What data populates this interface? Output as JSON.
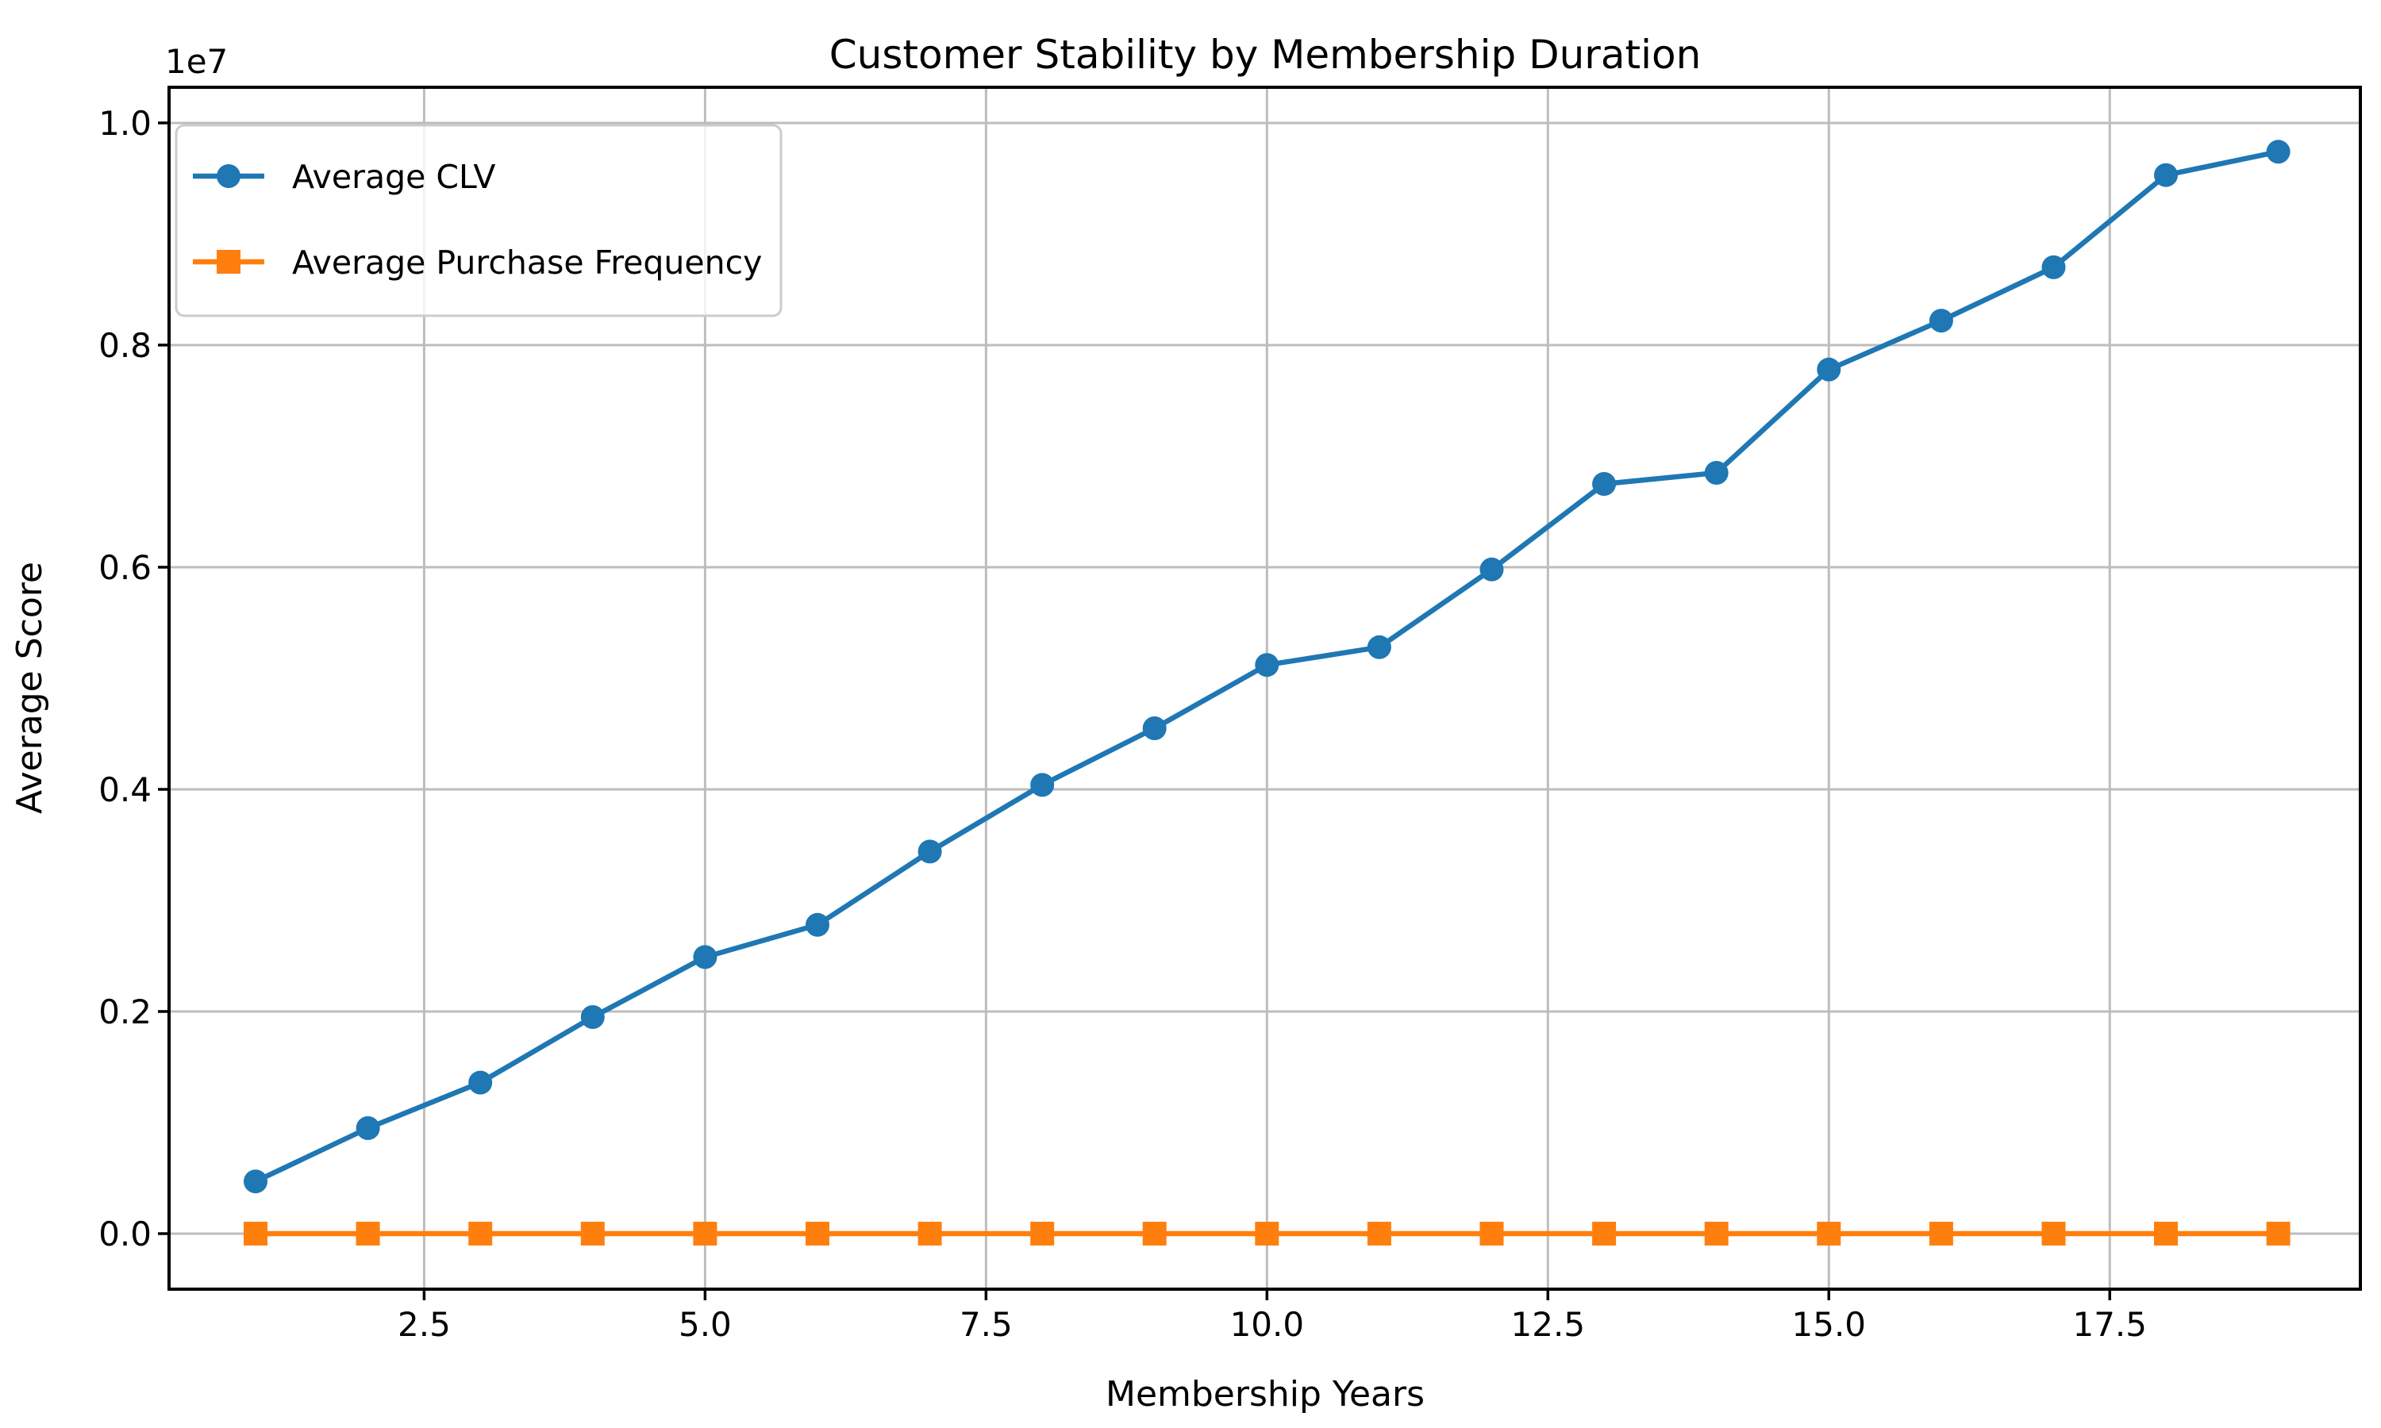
{
  "chart_data": {
    "type": "line",
    "title": "Customer Stability by Membership Duration",
    "xlabel": "Membership Years",
    "ylabel": "Average Score",
    "offset_text": "1e7",
    "grid": true,
    "legend_position": "upper left",
    "background": "#ffffff",
    "grid_color": "#bdbdbd",
    "spine_color": "#000000",
    "xlim": [
      0.23,
      19.73
    ],
    "ylim": [
      -500000,
      10321000
    ],
    "x": [
      1,
      2,
      3,
      4,
      5,
      6,
      7,
      8,
      9,
      10,
      11,
      12,
      13,
      14,
      15,
      16,
      17,
      18,
      19
    ],
    "xticks": {
      "values": [
        2.5,
        5.0,
        7.5,
        10.0,
        12.5,
        15.0,
        17.5
      ],
      "labels": [
        "2.5",
        "5.0",
        "7.5",
        "10.0",
        "12.5",
        "15.0",
        "17.5"
      ]
    },
    "yticks": {
      "values": [
        0,
        2000000,
        4000000,
        6000000,
        8000000,
        10000000
      ],
      "labels": [
        "0.0",
        "0.2",
        "0.4",
        "0.6",
        "0.8",
        "1.0"
      ]
    },
    "series": [
      {
        "name": "Average CLV",
        "color": "#1f77b4",
        "marker": "circle",
        "values": [
          470000,
          950000,
          1360000,
          1950000,
          2490000,
          2780000,
          3440000,
          4040000,
          4550000,
          5120000,
          5280000,
          5980000,
          6750000,
          6850000,
          7780000,
          8220000,
          8700000,
          9530000,
          9740000
        ]
      },
      {
        "name": "Average Purchase Frequency",
        "color": "#ff7f0e",
        "marker": "square",
        "values": [
          0,
          0,
          0,
          0,
          0,
          0,
          0,
          0,
          0,
          0,
          0,
          0,
          0,
          0,
          0,
          0,
          0,
          0,
          0
        ]
      }
    ]
  }
}
